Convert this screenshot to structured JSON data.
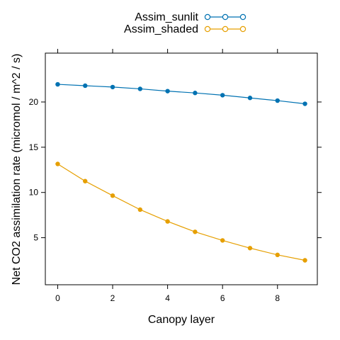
{
  "chart_data": {
    "type": "line",
    "title": "",
    "xlabel": "Canopy layer",
    "ylabel": "Net CO2 assimilation rate (micromol / m^2 / s)",
    "x": [
      0,
      1,
      2,
      3,
      4,
      5,
      6,
      7,
      8,
      9
    ],
    "xlim": [
      -0.45,
      9.45
    ],
    "ylim": [
      -0.2,
      25.4
    ],
    "xticks": [
      0,
      2,
      4,
      6,
      8
    ],
    "yticks": [
      5,
      10,
      15,
      20
    ],
    "grid": false,
    "legend_position": "top-center",
    "series": [
      {
        "name": "Assim_sunlit",
        "color": "#0072B2",
        "values": [
          21.95,
          21.8,
          21.65,
          21.45,
          21.2,
          21.0,
          20.75,
          20.45,
          20.15,
          19.8
        ]
      },
      {
        "name": "Assim_shaded",
        "color": "#E69F00",
        "values": [
          13.15,
          11.25,
          9.65,
          8.1,
          6.8,
          5.65,
          4.7,
          3.85,
          3.1,
          2.5
        ]
      }
    ]
  }
}
